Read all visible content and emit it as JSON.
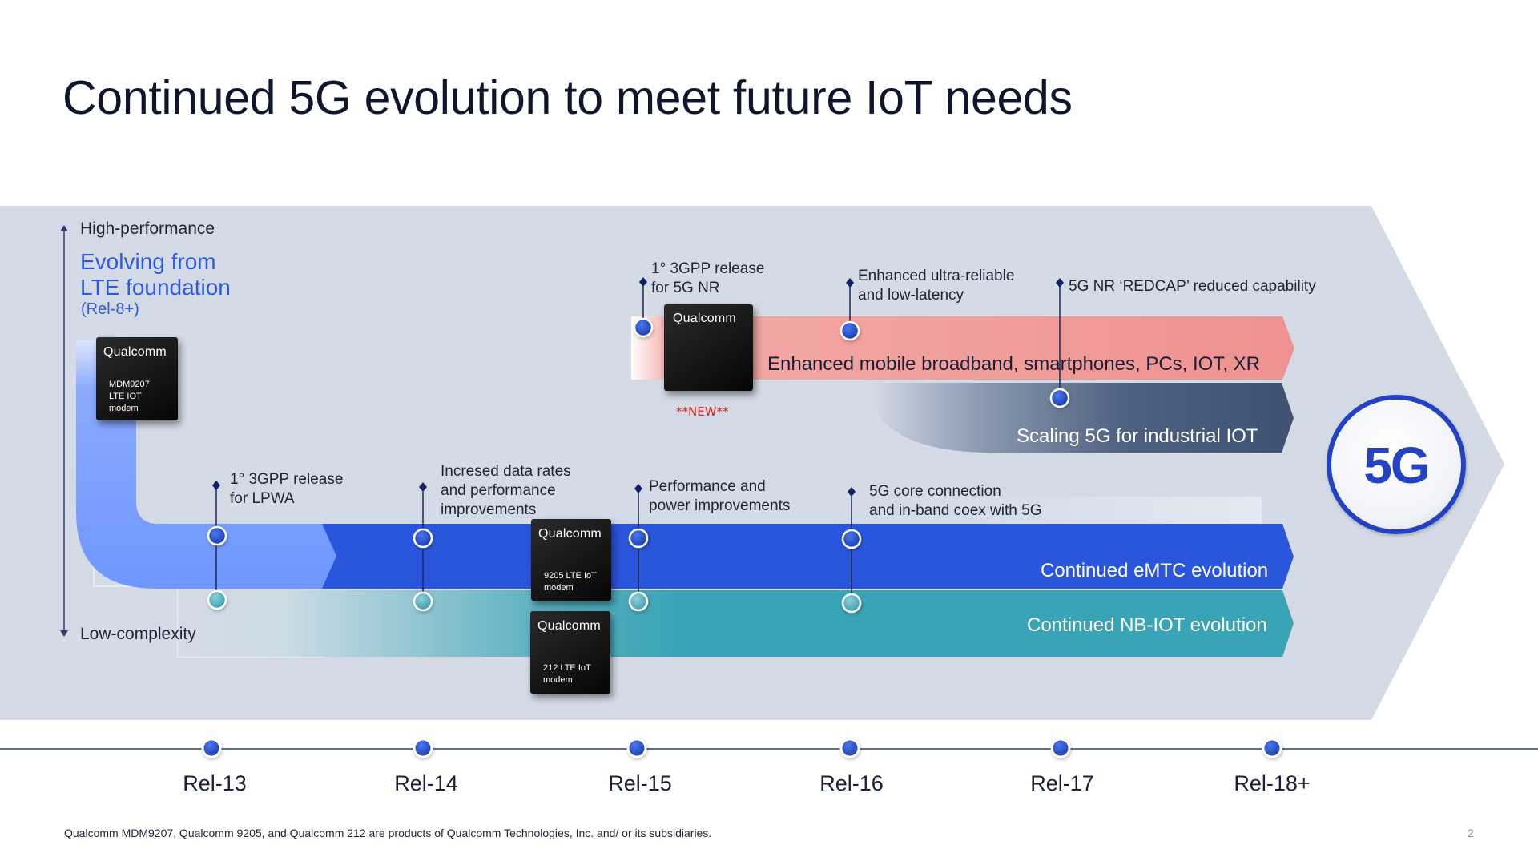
{
  "title": "Continued 5G evolution to meet future IoT needs",
  "axis": {
    "top_label": "High-performance",
    "bottom_label": "Low-complexity",
    "heading_line1": "Evolving from",
    "heading_line2": "LTE foundation",
    "heading_sub": "(Rel-8+)"
  },
  "chips": [
    {
      "brand": "Qualcomm",
      "line1": "MDM9207",
      "line2": "LTE IOT",
      "line3": "modem"
    },
    {
      "brand": "Qualcomm",
      "line1": "9205 LTE IoT",
      "line2": "modem"
    },
    {
      "brand": "Qualcomm",
      "line1": "212 LTE IoT",
      "line2": "modem"
    },
    {
      "brand": "Qualcomm"
    }
  ],
  "new_tag": "**NEW**",
  "milestones": {
    "rel13": {
      "line1": "1° 3GPP release",
      "line2": "for LPWA"
    },
    "rel14": {
      "line1": "Incresed data rates",
      "line2": "and performance",
      "line3": "improvements"
    },
    "rel15_top": {
      "line1": "1° 3GPP release",
      "line2": "for 5G NR"
    },
    "rel15_bottom": {
      "line1": "Performance and",
      "line2": "power improvements"
    },
    "rel16_top": {
      "line1": "Enhanced ultra-reliable",
      "line2": "and low-latency"
    },
    "rel16_bottom": {
      "line1": "5G core connection",
      "line2": "and in-band coex with 5G"
    },
    "rel17": {
      "line1": "5G NR ‘REDCAP’ reduced capability"
    }
  },
  "lanes": {
    "embb": "Enhanced mobile broadband, smartphones, PCs, IOT, XR",
    "industrial": "Scaling 5G for industrial IOT",
    "emtc": "Continued eMTC evolution",
    "nbiot": "Continued NB-IOT evolution"
  },
  "badge": "5G",
  "releases": [
    "Rel-13",
    "Rel-14",
    "Rel-15",
    "Rel-16",
    "Rel-17",
    "Rel-18+"
  ],
  "footnote": "Qualcomm MDM9207, Qualcomm 9205, and Qualcomm 212  are products of Qualcomm Technologies, Inc. and/ or its subsidiaries.",
  "page_number": "2",
  "colors": {
    "background_arrow": "#d5dbe6",
    "embb": "#ef9896",
    "industrial": "#4a5c7c",
    "emtc": "#2a55dd",
    "nbiot": "#38a4b5",
    "evolving": "#6f97ff",
    "accent_text": "#2f5bd8",
    "badge": "#2343c3"
  }
}
